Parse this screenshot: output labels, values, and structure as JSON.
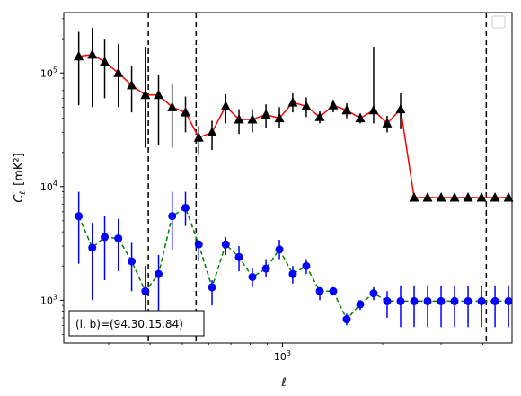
{
  "chart_data": {
    "type": "scatter",
    "xlabel": "ℓ",
    "ylabel_main": "C",
    "ylabel_sub": "ℓ",
    "ylabel_unit": "[mK²]",
    "xscale": "log",
    "yscale": "log",
    "xlim": [
      220,
      4900
    ],
    "ylim": [
      420,
      340000
    ],
    "x_ticks": [
      {
        "value": 1000,
        "label": "10",
        "exp": "3"
      }
    ],
    "y_ticks": [
      {
        "value": 1000,
        "label": "10",
        "exp": "3"
      },
      {
        "value": 10000,
        "label": "10",
        "exp": "4"
      },
      {
        "value": 100000,
        "label": "10",
        "exp": "5"
      }
    ],
    "vlines": [
      395,
      550,
      4100
    ],
    "legend": "top-right",
    "annotation": "(l, b)=(94.30,15.84)",
    "series": [
      {
        "marker": "triangle",
        "color": "#000000",
        "line_color": "#ff0000",
        "line_style": "solid",
        "x": [
          244,
          268,
          292,
          321,
          352,
          387,
          424,
          466,
          511,
          560,
          614,
          675,
          740,
          812,
          892,
          979,
          1074,
          1179,
          1295,
          1421,
          1560,
          1713,
          1880,
          2064,
          2266,
          2488,
          2731,
          2999,
          3292,
          3614,
          3968,
          4356,
          4782
        ],
        "y": [
          140000,
          145000,
          125000,
          100000,
          78000,
          64000,
          64000,
          50000,
          45000,
          27000,
          30000,
          51000,
          39000,
          39000,
          43000,
          40000,
          55000,
          51000,
          41000,
          52000,
          47000,
          40000,
          47000,
          36000,
          48000,
          8000,
          8000,
          8000,
          8000,
          8000,
          8000,
          8000,
          8000
        ],
        "err_low": [
          52000,
          50000,
          60000,
          50000,
          45000,
          22000,
          23000,
          22000,
          30000,
          19000,
          21000,
          36000,
          29000,
          30000,
          33000,
          33000,
          45000,
          41000,
          36000,
          45000,
          40000,
          36000,
          36000,
          30000,
          32000,
          8000,
          8000,
          8000,
          8000,
          8000,
          8000,
          8000,
          8000
        ],
        "err_high": [
          230000,
          250000,
          200000,
          180000,
          115000,
          170000,
          95000,
          80000,
          62000,
          34000,
          38000,
          65000,
          48000,
          48000,
          53000,
          50000,
          66000,
          61000,
          46000,
          58000,
          54000,
          44000,
          170000,
          42000,
          66000,
          8000,
          8000,
          8000,
          8000,
          8000,
          8000,
          8000,
          8000
        ]
      },
      {
        "marker": "circle",
        "color": "#0000ff",
        "line_color": "#008000",
        "line_style": "dashed",
        "x": [
          244,
          268,
          292,
          321,
          352,
          387,
          424,
          466,
          511,
          560,
          614,
          675,
          740,
          812,
          892,
          979,
          1074,
          1179,
          1295,
          1421,
          1560,
          1713,
          1880,
          2064,
          2266,
          2488,
          2731,
          2999,
          3292,
          3614,
          3968,
          4356,
          4782
        ],
        "y": [
          5500,
          2900,
          3600,
          3500,
          2200,
          1200,
          1700,
          5500,
          6500,
          3100,
          1300,
          3100,
          2400,
          1600,
          1900,
          2800,
          1700,
          2000,
          1200,
          1200,
          680,
          920,
          1150,
          980,
          980,
          980,
          980,
          980,
          980,
          980,
          980,
          980,
          980
        ],
        "err_low": [
          2100,
          1000,
          1500,
          1800,
          1200,
          500,
          800,
          2800,
          4500,
          2200,
          900,
          2500,
          1800,
          1300,
          1600,
          2300,
          1400,
          1700,
          1000,
          1100,
          600,
          820,
          1000,
          700,
          580,
          580,
          580,
          580,
          580,
          580,
          580,
          580,
          580
        ],
        "err_high": [
          9000,
          4800,
          5500,
          5200,
          3200,
          2000,
          2500,
          9000,
          9000,
          3300,
          1500,
          3600,
          3000,
          1900,
          2300,
          3400,
          2000,
          2300,
          1300,
          1300,
          760,
          1000,
          1300,
          1200,
          1350,
          1350,
          1350,
          1350,
          1350,
          1350,
          1350,
          1350,
          1350
        ]
      }
    ]
  }
}
